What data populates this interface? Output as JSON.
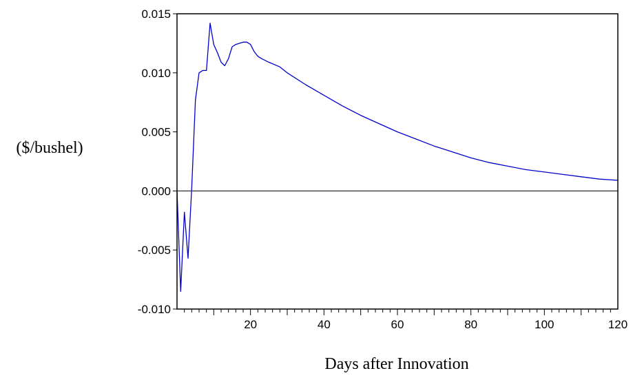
{
  "chart_data": {
    "type": "line",
    "title": "",
    "xlabel": "Days after Innovation",
    "ylabel": "($/bushel)",
    "xlim": [
      0,
      120
    ],
    "ylim": [
      -0.01,
      0.015
    ],
    "x_ticks": [
      20,
      40,
      60,
      80,
      100,
      120
    ],
    "x_tick_labels": [
      "20",
      "40",
      "60",
      "80",
      "100",
      "120"
    ],
    "y_ticks": [
      -0.01,
      -0.005,
      0.0,
      0.005,
      0.01,
      0.015
    ],
    "y_tick_labels": [
      "-0.010",
      "-0.005",
      "0.000",
      "0.005",
      "0.010",
      "0.015"
    ],
    "zero_line": true,
    "grid": false,
    "colors": {
      "series": "#0000cc",
      "axis": "#000000"
    },
    "series": [
      {
        "x": [
          0,
          1,
          2,
          3,
          4,
          5,
          6,
          7,
          8,
          9,
          10,
          11,
          12,
          13,
          14,
          15,
          16,
          17,
          18,
          19,
          20,
          21,
          22,
          23,
          25,
          28,
          30,
          35,
          40,
          45,
          50,
          55,
          60,
          65,
          70,
          75,
          80,
          85,
          90,
          95,
          100,
          105,
          110,
          115,
          120
        ],
        "values": [
          0.0,
          -0.0085,
          -0.0018,
          -0.0057,
          0.0002,
          0.0077,
          0.01,
          0.0102,
          0.0102,
          0.0142,
          0.0124,
          0.0117,
          0.0109,
          0.0106,
          0.0112,
          0.0122,
          0.0124,
          0.0125,
          0.0126,
          0.0126,
          0.0124,
          0.0118,
          0.0114,
          0.0112,
          0.0109,
          0.0105,
          0.01,
          0.009,
          0.0081,
          0.0072,
          0.0064,
          0.0057,
          0.005,
          0.0044,
          0.0038,
          0.0033,
          0.0028,
          0.0024,
          0.0021,
          0.0018,
          0.0016,
          0.0014,
          0.0012,
          0.001,
          0.0009
        ]
      }
    ]
  }
}
